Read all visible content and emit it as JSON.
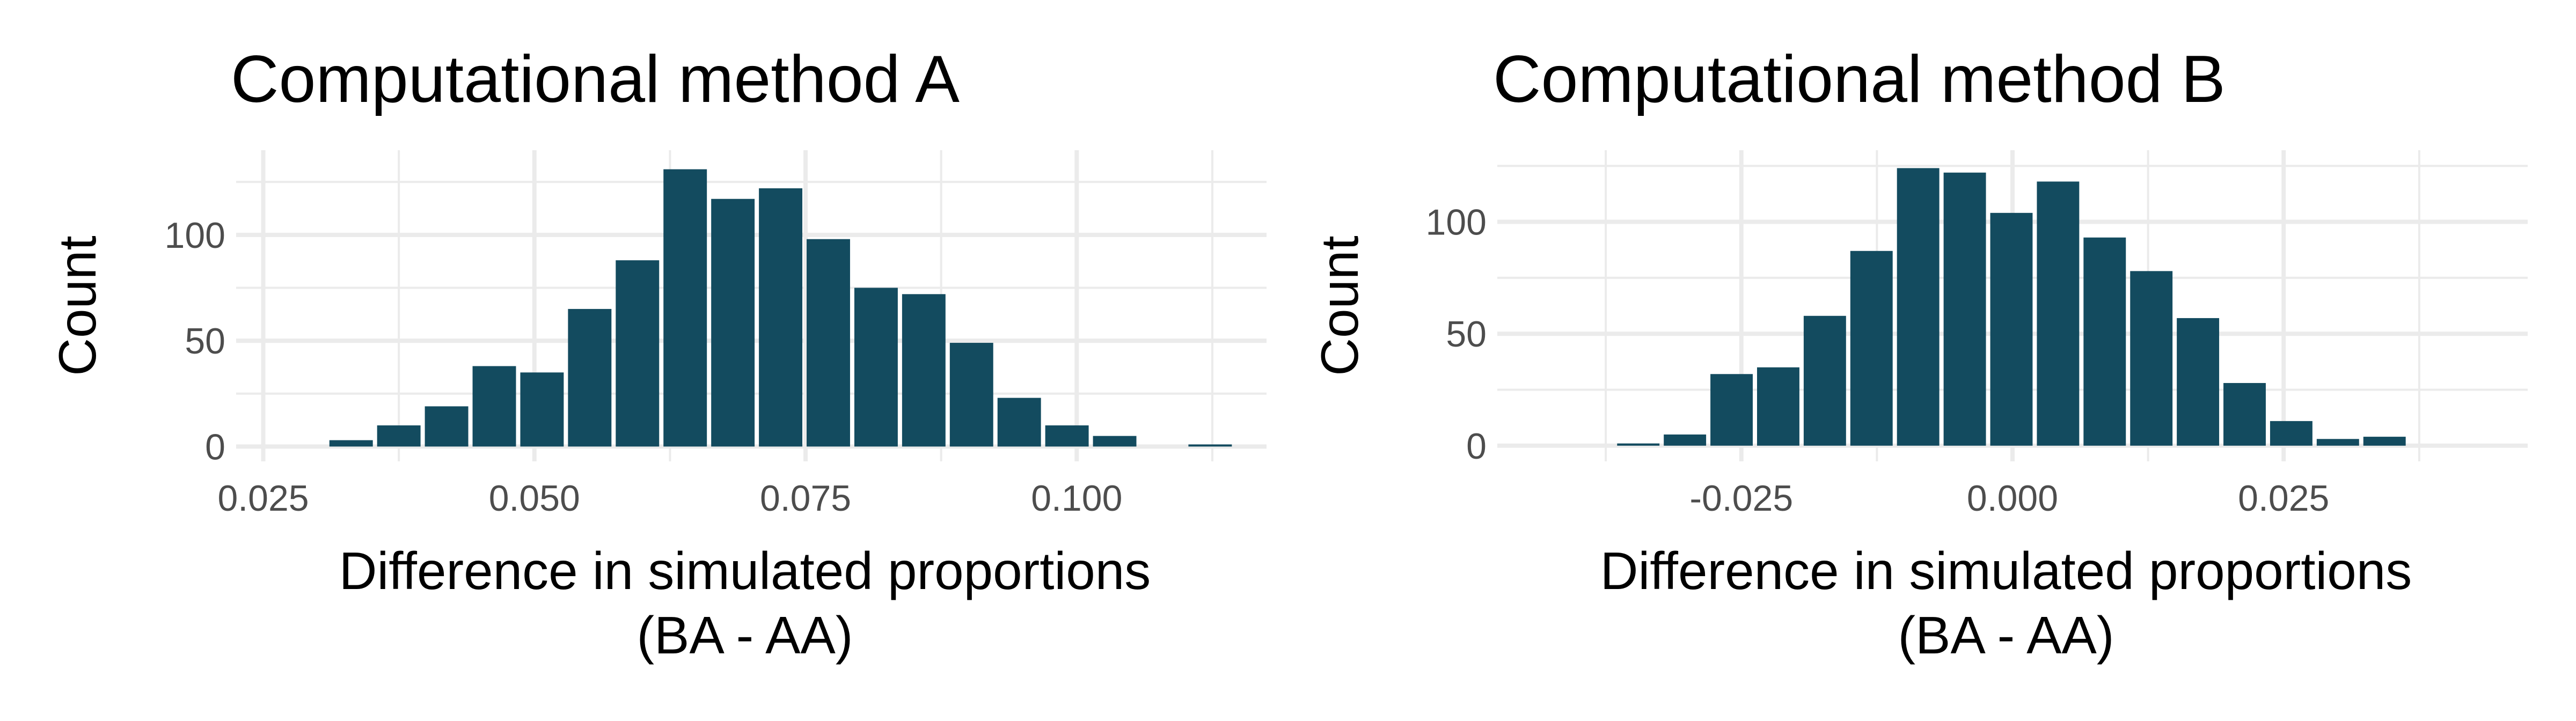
{
  "chart_data": [
    {
      "type": "bar",
      "title": "Computational method A",
      "xlabel": [
        "Difference in simulated proportions",
        "(BA - AA)"
      ],
      "ylabel": "Count",
      "xlim": [
        0.0225,
        0.1175
      ],
      "ylim": [
        -7,
        140
      ],
      "x_ticks": [
        {
          "value": 0.025,
          "label": "0.025"
        },
        {
          "value": 0.05,
          "label": "0.050"
        },
        {
          "value": 0.075,
          "label": "0.075"
        },
        {
          "value": 0.1,
          "label": "0.100"
        }
      ],
      "y_ticks": [
        {
          "value": 0,
          "label": "0"
        },
        {
          "value": 50,
          "label": "50"
        },
        {
          "value": 100,
          "label": "100"
        }
      ],
      "y_minor_ticks": [
        25,
        75,
        125
      ],
      "bin_width": 0.0044,
      "bar_color": "#134b5f",
      "grid": true,
      "bins": [
        {
          "x": 0.0287,
          "count": 0
        },
        {
          "x": 0.0331,
          "count": 3
        },
        {
          "x": 0.0375,
          "count": 10
        },
        {
          "x": 0.0419,
          "count": 19
        },
        {
          "x": 0.0463,
          "count": 38
        },
        {
          "x": 0.0507,
          "count": 35
        },
        {
          "x": 0.0551,
          "count": 65
        },
        {
          "x": 0.0595,
          "count": 88
        },
        {
          "x": 0.0639,
          "count": 131
        },
        {
          "x": 0.0683,
          "count": 117
        },
        {
          "x": 0.0727,
          "count": 122
        },
        {
          "x": 0.0771,
          "count": 98
        },
        {
          "x": 0.0815,
          "count": 75
        },
        {
          "x": 0.0859,
          "count": 72
        },
        {
          "x": 0.0903,
          "count": 49
        },
        {
          "x": 0.0947,
          "count": 23
        },
        {
          "x": 0.0991,
          "count": 10
        },
        {
          "x": 0.1035,
          "count": 5
        },
        {
          "x": 0.1079,
          "count": 0
        },
        {
          "x": 0.1123,
          "count": 1
        }
      ]
    },
    {
      "type": "bar",
      "title": "Computational method B",
      "xlabel": [
        "Difference in simulated proportions",
        "(BA - AA)"
      ],
      "ylabel": "Count",
      "xlim": [
        -0.0475,
        0.0475
      ],
      "ylim": [
        -7,
        132
      ],
      "x_ticks": [
        {
          "value": -0.025,
          "label": "-0.025"
        },
        {
          "value": 0,
          "label": "0.000"
        },
        {
          "value": 0.025,
          "label": "0.025"
        }
      ],
      "y_ticks": [
        {
          "value": 0,
          "label": "0"
        },
        {
          "value": 50,
          "label": "50"
        },
        {
          "value": 100,
          "label": "100"
        }
      ],
      "y_minor_ticks": [
        25,
        75,
        125
      ],
      "bin_width": 0.0043,
      "bar_color": "#134b5f",
      "grid": true,
      "bins": [
        {
          "x": -0.0345,
          "count": 1
        },
        {
          "x": -0.0302,
          "count": 5
        },
        {
          "x": -0.0259,
          "count": 32
        },
        {
          "x": -0.0216,
          "count": 35
        },
        {
          "x": -0.0173,
          "count": 58
        },
        {
          "x": -0.013,
          "count": 87
        },
        {
          "x": -0.0087,
          "count": 124
        },
        {
          "x": -0.0044,
          "count": 122
        },
        {
          "x": -0.0001,
          "count": 104
        },
        {
          "x": 0.0042,
          "count": 118
        },
        {
          "x": 0.0085,
          "count": 93
        },
        {
          "x": 0.0128,
          "count": 78
        },
        {
          "x": 0.0171,
          "count": 57
        },
        {
          "x": 0.0214,
          "count": 28
        },
        {
          "x": 0.0257,
          "count": 11
        },
        {
          "x": 0.03,
          "count": 3
        },
        {
          "x": 0.0343,
          "count": 4
        }
      ]
    }
  ]
}
